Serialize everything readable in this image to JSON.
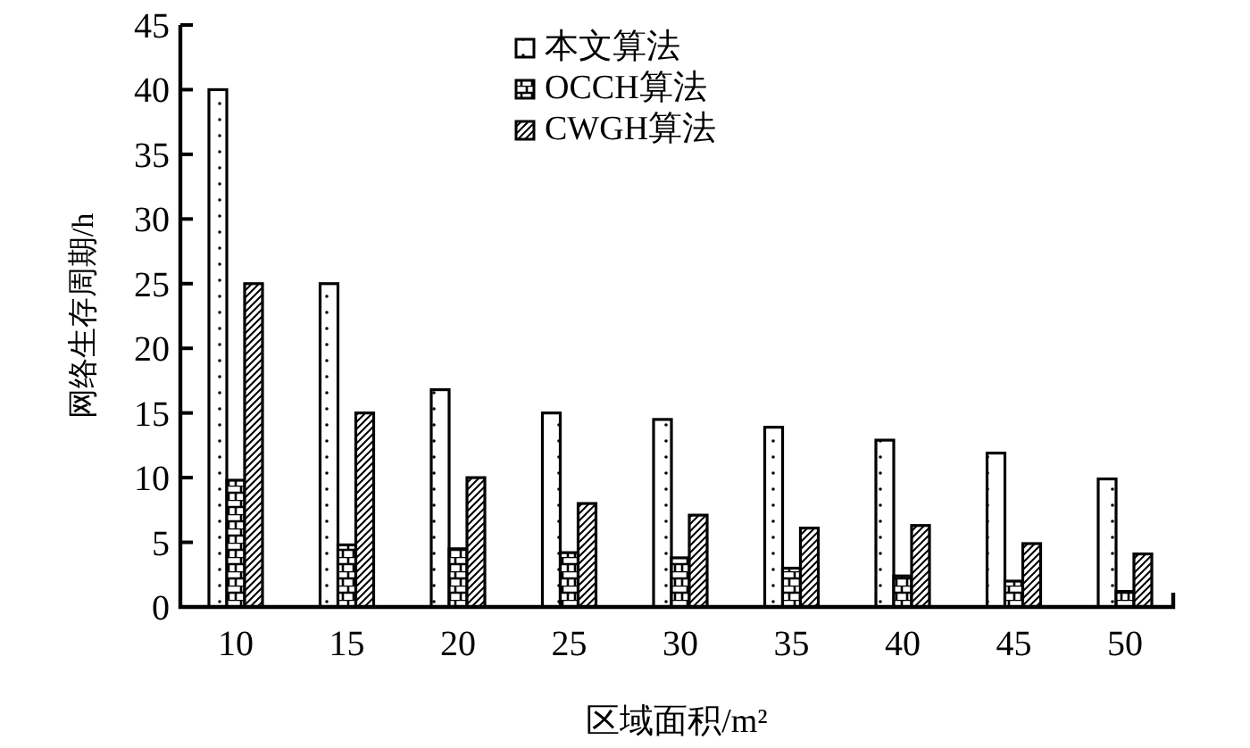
{
  "chart_data": {
    "type": "bar",
    "xlabel": "区域面积/m²",
    "ylabel": "网络生存周期/h",
    "categories": [
      "10",
      "15",
      "20",
      "25",
      "30",
      "35",
      "40",
      "45",
      "50"
    ],
    "ylim": [
      0,
      45
    ],
    "yticks": [
      0,
      5,
      10,
      15,
      20,
      25,
      30,
      35,
      40,
      45
    ],
    "legend": "top",
    "series": [
      {
        "name": "本文算法",
        "color": "#000000",
        "values": [
          40,
          25,
          16.8,
          15,
          14.5,
          13.9,
          12.9,
          11.9,
          9.9
        ]
      },
      {
        "name": "OCCH算法",
        "color": "#000000",
        "values": [
          9.8,
          4.8,
          4.5,
          4.2,
          3.8,
          3.0,
          2.4,
          2.0,
          1.2
        ]
      },
      {
        "name": "CWGH算法",
        "color": "#000000",
        "values": [
          25,
          15,
          10,
          8.0,
          7.1,
          6.1,
          6.3,
          4.9,
          4.1
        ]
      }
    ]
  }
}
